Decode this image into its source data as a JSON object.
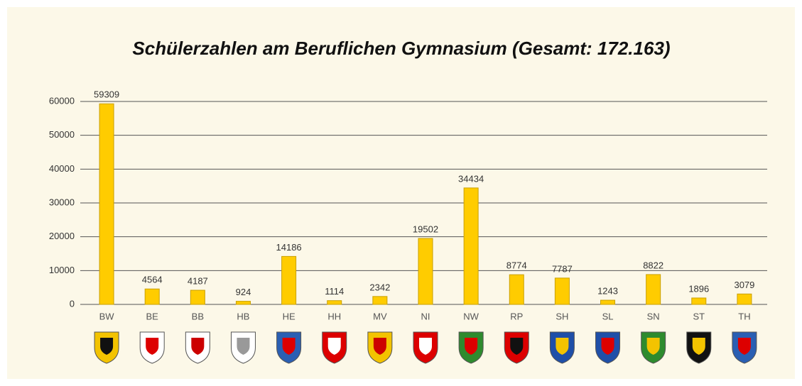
{
  "chart_data": {
    "type": "bar",
    "title": "Schülerzahlen am Beruflichen Gymnasium (Gesamt: 172.163)",
    "categories": [
      "BW",
      "BE",
      "BB",
      "HB",
      "HE",
      "HH",
      "MV",
      "NI",
      "NW",
      "RP",
      "SH",
      "SL",
      "SN",
      "ST",
      "TH"
    ],
    "values": [
      59309,
      4564,
      4187,
      924,
      14186,
      1114,
      2342,
      19502,
      34434,
      8774,
      7787,
      1243,
      8822,
      1896,
      3079
    ],
    "color": "#ffcc00",
    "ylim": [
      0,
      60000
    ],
    "yticks": [
      0,
      10000,
      20000,
      30000,
      40000,
      50000,
      60000
    ],
    "grid": true
  }
}
